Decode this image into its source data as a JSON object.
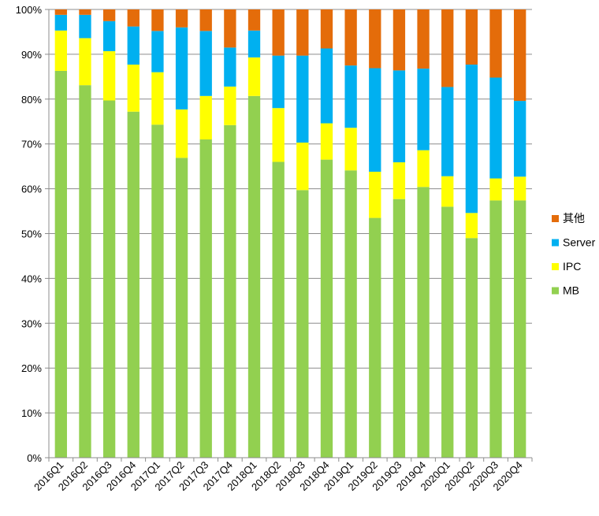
{
  "chart_data": {
    "type": "bar",
    "stacked": true,
    "percent": true,
    "categories": [
      "2016Q1",
      "2016Q2",
      "2016Q3",
      "2016Q4",
      "2017Q1",
      "2017Q2",
      "2017Q3",
      "2017Q4",
      "2018Q1",
      "2018Q2",
      "2018Q3",
      "2018Q4",
      "2019Q1",
      "2019Q2",
      "2019Q3",
      "2019Q4",
      "2020Q1",
      "2020Q2",
      "2020Q3",
      "2020Q4"
    ],
    "series": [
      {
        "name": "MB",
        "color": "#92D050",
        "values": [
          86.3,
          83.1,
          79.7,
          77.2,
          74.3,
          66.9,
          71.0,
          74.2,
          80.7,
          66.0,
          59.7,
          66.5,
          64.1,
          53.5,
          57.7,
          60.4,
          56.0,
          49.0,
          57.4,
          57.4
        ]
      },
      {
        "name": "IPC",
        "color": "#FFFF00",
        "values": [
          9.0,
          10.5,
          11.0,
          10.5,
          11.7,
          10.8,
          9.7,
          8.6,
          8.6,
          12.0,
          10.6,
          8.1,
          9.5,
          10.3,
          8.2,
          8.2,
          6.8,
          5.6,
          4.9,
          5.3
        ]
      },
      {
        "name": "Server",
        "color": "#00B0F0",
        "values": [
          3.5,
          5.2,
          6.7,
          8.5,
          9.2,
          18.3,
          14.5,
          8.7,
          6.0,
          11.7,
          19.4,
          16.7,
          13.9,
          23.1,
          20.5,
          18.2,
          19.9,
          33.1,
          22.5,
          16.9
        ]
      },
      {
        "name": "其他",
        "color": "#E46C0A",
        "values": [
          1.2,
          1.2,
          2.6,
          3.8,
          4.8,
          4.0,
          4.8,
          8.5,
          4.7,
          10.3,
          10.3,
          8.7,
          12.5,
          13.1,
          13.6,
          13.2,
          17.3,
          12.3,
          15.2,
          20.4
        ]
      }
    ],
    "ylim": [
      0,
      100
    ],
    "yticks": [
      "0%",
      "10%",
      "20%",
      "30%",
      "40%",
      "50%",
      "60%",
      "70%",
      "80%",
      "90%",
      "100%"
    ],
    "grid": true,
    "legend_position": "right",
    "legend_order": [
      "其他",
      "Server",
      "IPC",
      "MB"
    ]
  }
}
